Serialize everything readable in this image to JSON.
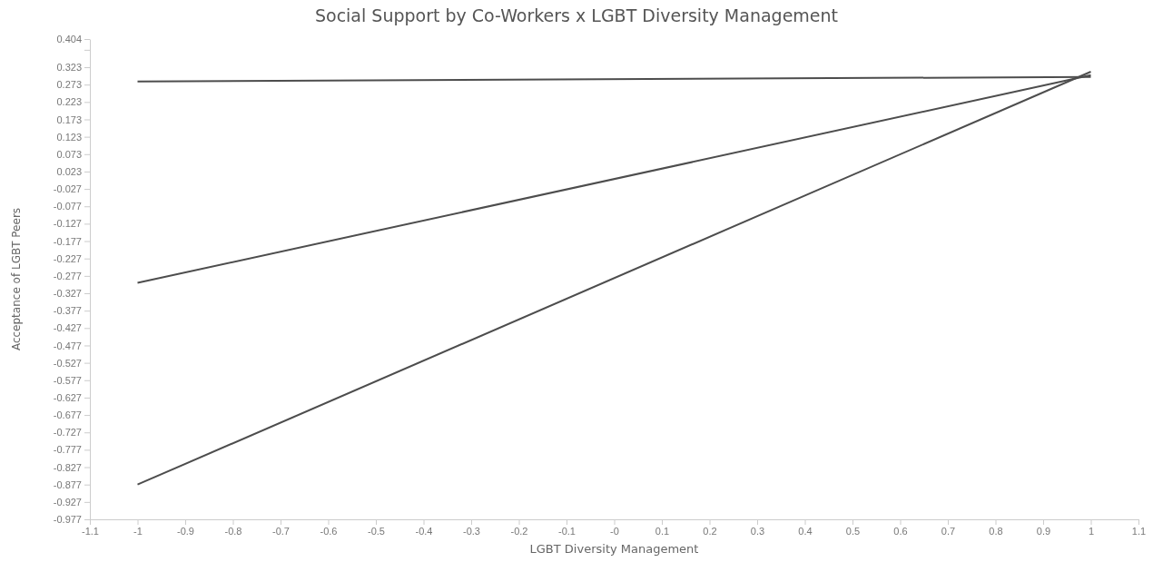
{
  "chart_data": {
    "type": "line",
    "title": "Social Support by Co-Workers x LGBT Diversity Management",
    "xlabel": "LGBT Diversity Management",
    "ylabel": "Acceptance of LGBT Peers",
    "x": [
      -1,
      1
    ],
    "series": [
      {
        "color": "#4d4d4d",
        "values": [
          0.282,
          0.295
        ]
      },
      {
        "color": "#4d4d4d",
        "values": [
          -0.297,
          0.3
        ]
      },
      {
        "color": "#4d4d4d",
        "values": [
          -0.877,
          0.31
        ]
      }
    ],
    "xlim": [
      -1.1,
      1.1
    ],
    "xticks": [
      -1.1,
      -1,
      -0.9,
      -0.8,
      -0.7,
      -0.6,
      -0.5,
      -0.4,
      -0.3,
      -0.2,
      -0.1,
      {
        "value": 0,
        "label": "-0"
      },
      0.1,
      0.2,
      0.3,
      0.4,
      0.5,
      0.6,
      0.7,
      0.8,
      0.9,
      1,
      1.1
    ],
    "ylim": [
      -0.977,
      0.404
    ],
    "yticks": [
      -0.977,
      -0.927,
      -0.877,
      -0.827,
      -0.777,
      -0.727,
      -0.677,
      -0.627,
      -0.577,
      -0.527,
      -0.477,
      -0.427,
      -0.377,
      -0.327,
      -0.277,
      -0.227,
      -0.177,
      -0.127,
      -0.077,
      -0.027,
      0.023,
      0.073,
      0.123,
      0.173,
      0.223,
      0.273,
      0.323,
      {
        "value": 0.373,
        "label": null
      },
      0.404
    ],
    "grid": false,
    "marker": "none",
    "line_style": "solid"
  }
}
